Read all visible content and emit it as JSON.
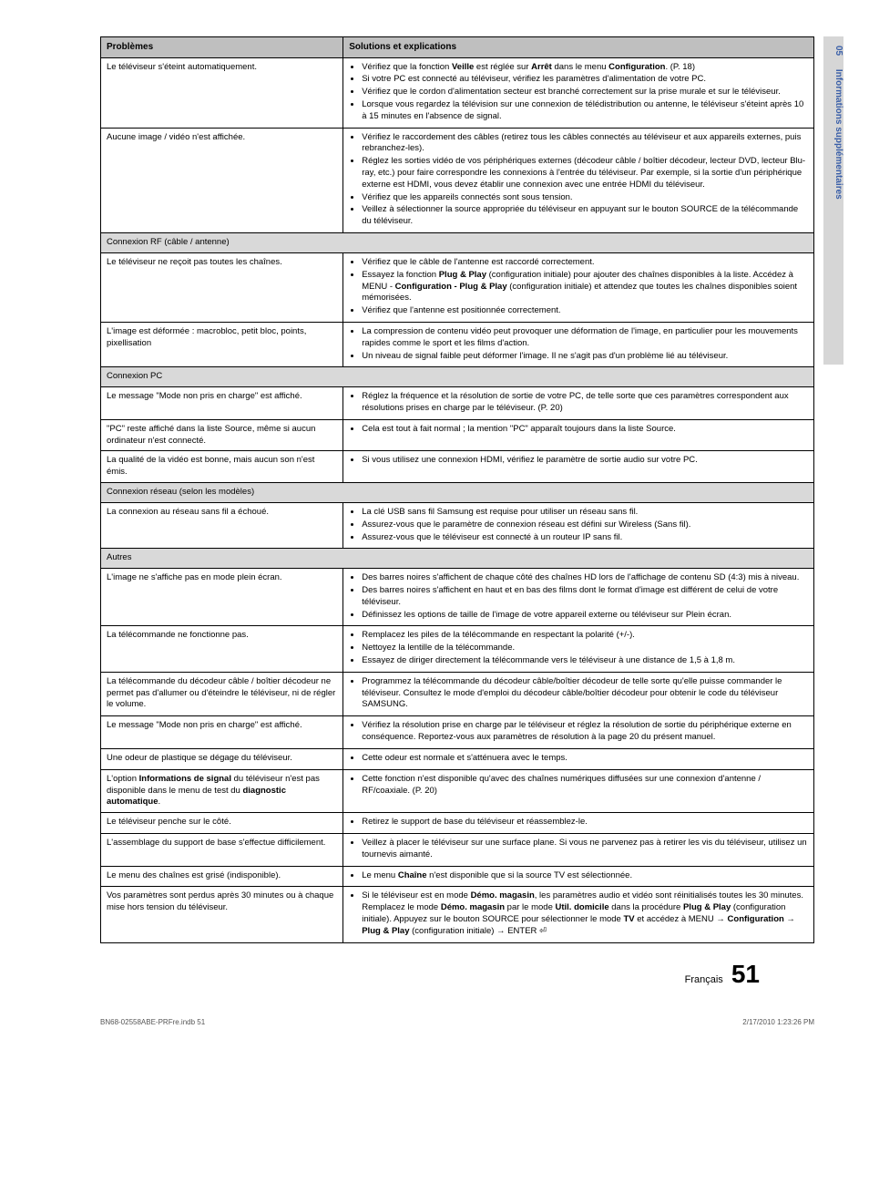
{
  "side_tab": {
    "num": "05",
    "label": "Informations supplémentaires"
  },
  "headers": {
    "c1": "Problèmes",
    "c2": "Solutions et explications"
  },
  "rows": [
    {
      "problem": "Le téléviseur s'éteint automatiquement.",
      "solutions": [
        "Vérifiez que la fonction <b>Veille</b> est réglée sur <b>Arrêt</b> dans le menu <b>Configuration</b>. (P. 18)",
        "Si votre PC est connecté au téléviseur, vérifiez les paramètres d'alimentation de votre PC.",
        "Vérifiez que le cordon d'alimentation secteur est branché correctement sur la prise murale et sur le téléviseur.",
        "Lorsque vous regardez la télévision sur une connexion de télédistribution ou antenne, le téléviseur s'éteint après 10 à 15 minutes en l'absence de signal."
      ]
    },
    {
      "problem": "Aucune image / vidéo n'est affichée.",
      "solutions": [
        "Vérifiez le raccordement des câbles (retirez tous les câbles connectés au téléviseur et aux appareils externes, puis rebranchez-les).",
        "Réglez les sorties vidéo de vos périphériques externes (décodeur câble / boîtier décodeur, lecteur DVD, lecteur Blu-ray, etc.) pour faire correspondre les connexions à l'entrée du téléviseur. Par exemple, si la sortie d'un périphérique externe est HDMI, vous devez établir une connexion avec une entrée HDMI du téléviseur.",
        "Vérifiez que les appareils connectés sont sous tension.",
        "Veillez à sélectionner la source appropriée du téléviseur en appuyant sur le bouton SOURCE de la télécommande du téléviseur."
      ]
    },
    {
      "section": "Connexion RF (câble / antenne)"
    },
    {
      "problem": "Le téléviseur ne reçoit pas toutes les chaînes.",
      "solutions": [
        "Vérifiez que le câble de l'antenne est raccordé correctement.",
        "Essayez la fonction <b>Plug & Play</b> (configuration initiale) pour ajouter des chaînes disponibles à la liste. Accédez à MENU - <b>Configuration - Plug & Play</b> (configuration initiale) et attendez que toutes les chaînes disponibles soient mémorisées.",
        "Vérifiez que l'antenne est positionnée correctement."
      ]
    },
    {
      "problem": "L'image est déformée : macrobloc, petit bloc, points, pixellisation",
      "solutions": [
        "La compression de contenu vidéo peut provoquer une déformation de l'image, en particulier pour les mouvements rapides comme le sport et les films d'action.",
        "Un niveau de signal faible peut déformer l'image. Il ne s'agit pas d'un problème lié au téléviseur."
      ]
    },
    {
      "section": "Connexion PC"
    },
    {
      "problem": "Le message \"Mode non pris en charge\" est affiché.",
      "solutions": [
        "Réglez la fréquence et la résolution de sortie de votre PC, de telle sorte que ces paramètres correspondent aux résolutions prises en charge par le téléviseur. (P. 20)"
      ]
    },
    {
      "problem": "\"PC\" reste affiché dans la liste Source, même si aucun ordinateur n'est connecté.",
      "solutions": [
        "Cela est tout à fait normal ; la mention \"PC\" apparaît toujours dans la liste Source."
      ]
    },
    {
      "problem": "La qualité de la vidéo est bonne, mais aucun son n'est émis.",
      "solutions": [
        "Si vous utilisez une connexion HDMI, vérifiez le paramètre de sortie audio sur votre PC."
      ]
    },
    {
      "section": "Connexion réseau (selon les modèles)"
    },
    {
      "problem": "La connexion au réseau sans fil a échoué.",
      "solutions": [
        "La clé USB sans fil Samsung est requise pour utiliser un réseau sans fil.",
        "Assurez-vous que le paramètre de connexion réseau est défini sur Wireless (Sans fil).",
        "Assurez-vous que le téléviseur est connecté à un routeur IP sans fil."
      ]
    },
    {
      "section": "Autres"
    },
    {
      "problem": "L'image ne s'affiche pas en mode plein écran.",
      "solutions": [
        "Des barres noires s'affichent de chaque côté des chaînes HD lors de l'affichage de contenu SD (4:3) mis à niveau.",
        "Des barres noires s'affichent en haut et en bas des films dont le format d'image est différent de celui de votre téléviseur.",
        "Définissez les options de taille de l'image de votre appareil externe ou téléviseur sur Plein écran."
      ]
    },
    {
      "problem": "La télécommande ne fonctionne pas.",
      "solutions": [
        "Remplacez les piles de la télécommande en respectant la polarité (+/-).",
        "Nettoyez la lentille de la télécommande.",
        "Essayez de diriger directement la télécommande vers le téléviseur à une distance de 1,5 à 1,8 m."
      ]
    },
    {
      "problem": "La télécommande du décodeur câble / boîtier décodeur ne permet pas d'allumer ou d'éteindre le téléviseur, ni de régler le volume.",
      "solutions": [
        "Programmez la télécommande du décodeur câble/boîtier décodeur de telle sorte qu'elle puisse commander le téléviseur. Consultez le mode d'emploi du décodeur câble/boîtier décodeur pour obtenir le code du téléviseur SAMSUNG."
      ]
    },
    {
      "problem": "Le message \"Mode non pris en charge\" est affiché.",
      "solutions": [
        "Vérifiez la résolution prise en charge par le téléviseur et réglez la résolution de sortie du périphérique externe en conséquence. Reportez-vous aux paramètres de résolution à la page 20 du présent manuel."
      ]
    },
    {
      "problem": "Une odeur de plastique se dégage du téléviseur.",
      "solutions": [
        "Cette odeur est normale et s'atténuera avec le temps."
      ]
    },
    {
      "problem": "L'option <b>Informations de signal</b> du téléviseur n'est pas disponible dans le menu de test du <b>diagnostic automatique</b>.",
      "solutions": [
        "Cette fonction n'est disponible qu'avec des chaînes numériques diffusées sur une connexion d'antenne / RF/coaxiale. (P. 20)"
      ]
    },
    {
      "problem": "Le téléviseur penche sur le côté.",
      "solutions": [
        "Retirez le support de base du téléviseur et réassemblez-le."
      ]
    },
    {
      "problem": "L'assemblage du support de base s'effectue difficilement.",
      "solutions": [
        "Veillez à placer le téléviseur sur une surface plane. Si vous ne parvenez pas à retirer les vis du téléviseur, utilisez un tournevis aimanté."
      ]
    },
    {
      "problem": "Le menu des chaînes est grisé (indisponible).",
      "solutions": [
        "Le menu <b>Chaîne</b> n'est disponible que si la source TV est sélectionnée."
      ]
    },
    {
      "problem": "Vos paramètres sont perdus après 30 minutes ou à chaque mise hors tension du téléviseur.",
      "solutions": [
        "Si le téléviseur est en mode <b>Démo. magasin</b>, les paramètres audio et vidéo sont réinitialisés toutes les 30 minutes. Remplacez le mode <b>Démo. magasin</b> par le mode <b>Util. domicile</b> dans la procédure <b>Plug & Play</b> (configuration initiale). Appuyez sur le bouton SOURCE pour sélectionner le mode <b>TV</b> et accédez à MENU → <b>Configuration</b> → <b>Plug & Play</b> (configuration initiale) → ENTER ⏎"
      ]
    }
  ],
  "footer": {
    "lang": "Français",
    "page": "51"
  },
  "bottom": {
    "left": "BN68-02558ABE-PRFre.indb   51",
    "right": "2/17/2010   1:23:26 PM"
  },
  "colors": {
    "header_bg": "#bfbfbf",
    "section_bg": "#d9d9d9",
    "tab_bg": "#d6d6d6",
    "tab_text": "#3a5fa8"
  }
}
